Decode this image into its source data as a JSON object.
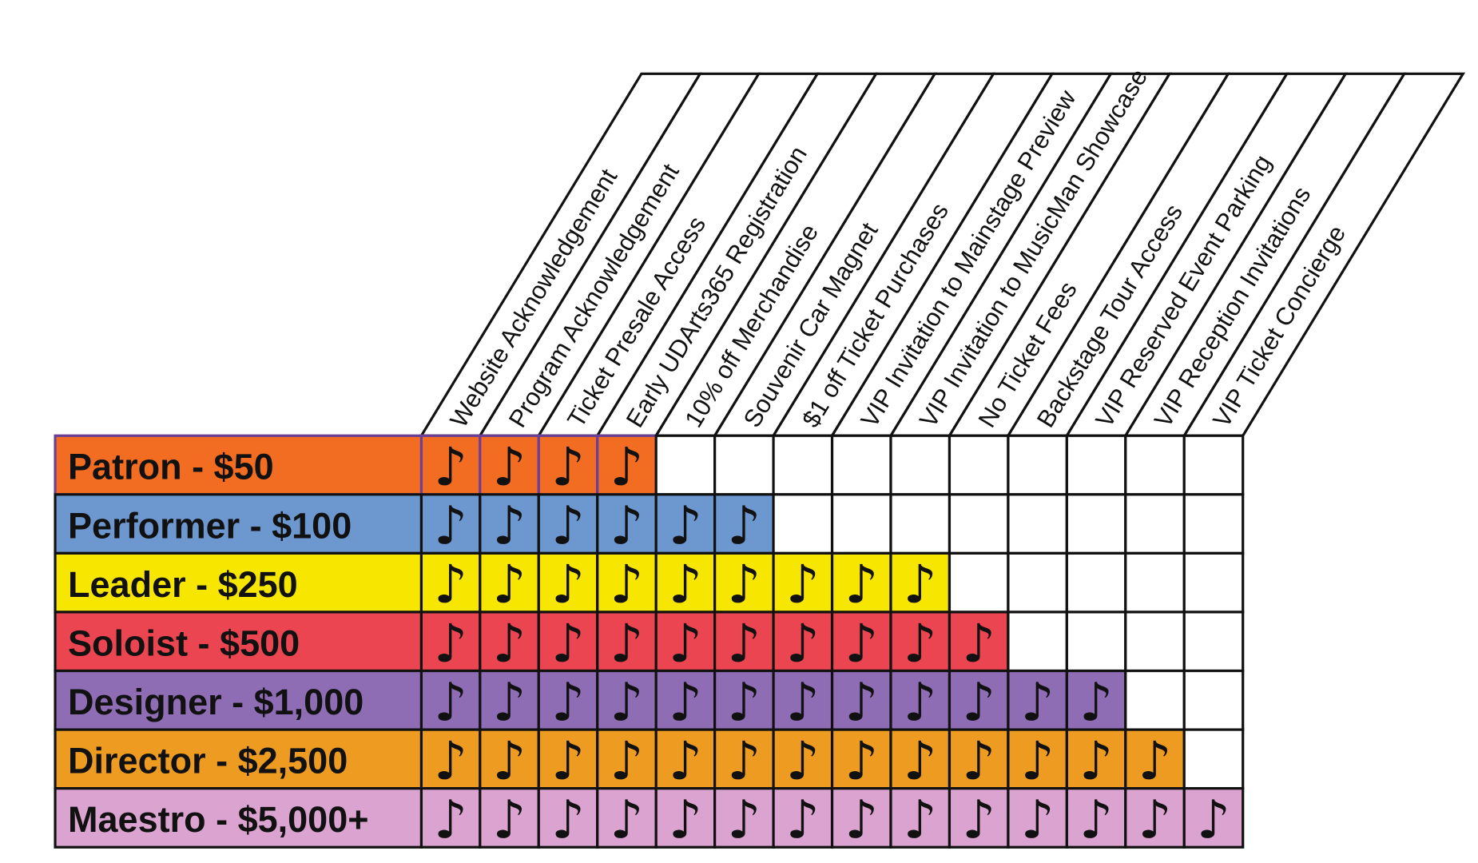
{
  "benefits": [
    "Website Acknowledgement",
    "Program Acknowledgement",
    "Ticket Presale Access",
    "Early UDArts365 Registration",
    "10% off Merchandise",
    "Souvenir Car Magnet",
    "$1 off Ticket Purchases",
    "VIP Invitation to Mainstage Preview",
    "VIP Invitation to MusicMan Showcase",
    "No Ticket Fees",
    "Backstage Tour Access",
    "VIP Reserved Event Parking",
    "VIP Reception Invitations",
    "VIP Ticket Concierge"
  ],
  "tiers": [
    {
      "label": "Patron - $50",
      "color": "#F26D21",
      "benefit_count": 4
    },
    {
      "label": "Performer - $100",
      "color": "#6C97CF",
      "benefit_count": 6
    },
    {
      "label": "Leader - $250",
      "color": "#F7E600",
      "benefit_count": 9
    },
    {
      "label": "Soloist - $500",
      "color": "#EA4550",
      "benefit_count": 10
    },
    {
      "label": "Designer - $1,000",
      "color": "#8E6DB5",
      "benefit_count": 12
    },
    {
      "label": "Director - $2,500",
      "color": "#EE9C21",
      "benefit_count": 13
    },
    {
      "label": "Maestro - $5,000+",
      "color": "#DBA3CF",
      "benefit_count": 14
    }
  ],
  "check_symbol": "♪",
  "check_icon": "eighth-note-icon",
  "colors": {
    "border": "#111111",
    "patron_border": "#6B3F98",
    "empty_cell": "#FFFFFF"
  }
}
